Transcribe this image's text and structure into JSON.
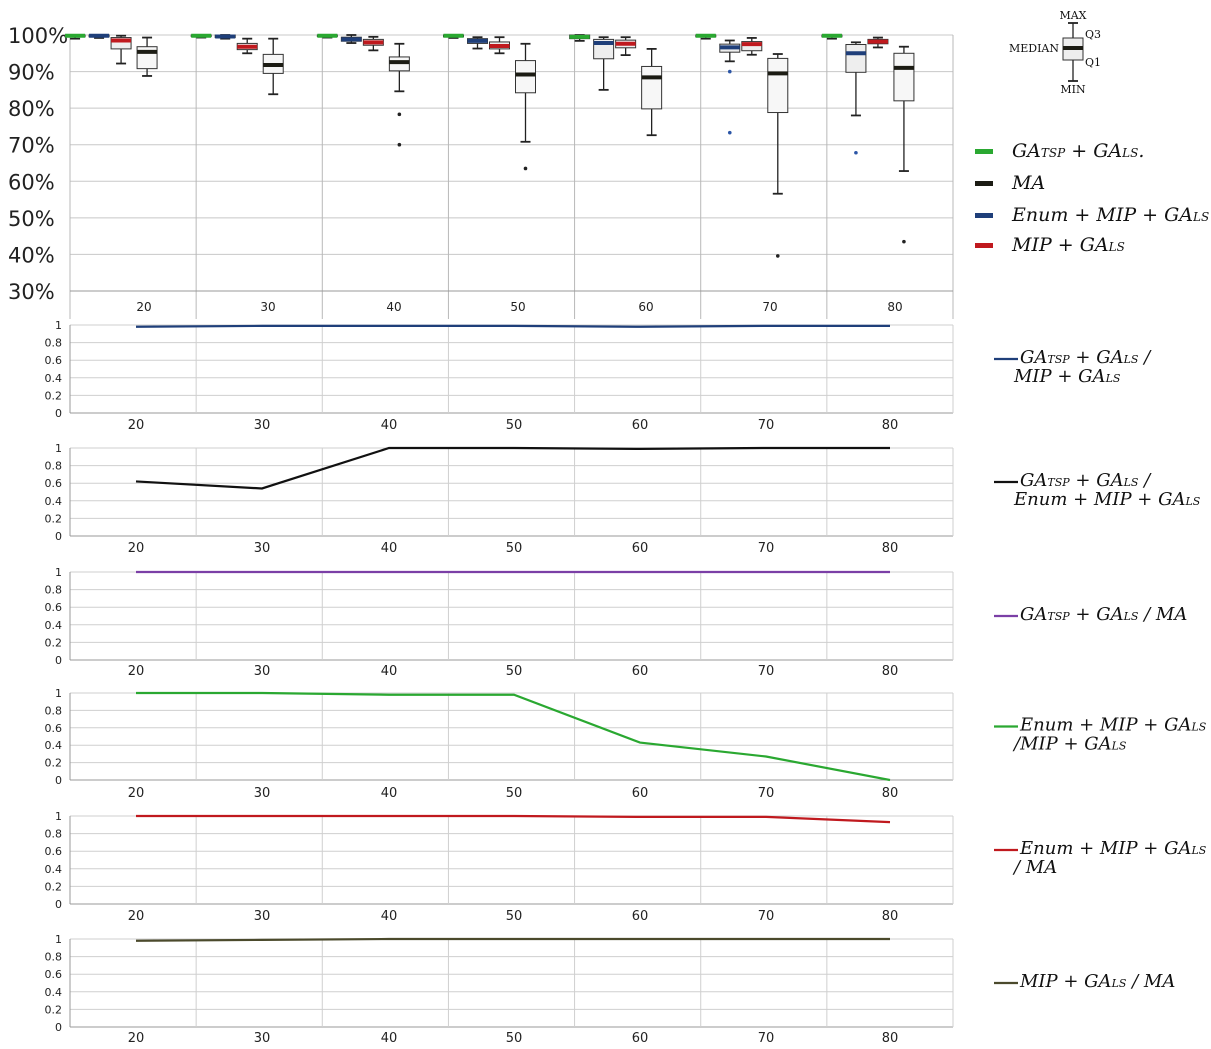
{
  "chart_data": [
    {
      "type": "box",
      "categories": [
        "20",
        "30",
        "40",
        "50",
        "60",
        "70",
        "80"
      ],
      "y_ticks": [
        "100%",
        "90%",
        "80%",
        "70%",
        "60%",
        "50%",
        "40%",
        "30%"
      ],
      "ylim": [
        30,
        100
      ],
      "grid": true,
      "legend_position": "right",
      "series": [
        {
          "label_main": "GA",
          "label_sub": "TSP",
          "label_mid": " + GA",
          "label_sub2": "LS",
          "label_tail": ".",
          "color": "#2aa831",
          "boxes": [
            {
              "min": 99.0,
              "q1": 99.5,
              "median": 99.8,
              "q3": 100,
              "max": 100
            },
            {
              "min": 99.3,
              "q1": 99.6,
              "median": 99.8,
              "q3": 100,
              "max": 100
            },
            {
              "min": 99.3,
              "q1": 99.6,
              "median": 99.8,
              "q3": 100,
              "max": 100
            },
            {
              "min": 99.2,
              "q1": 99.5,
              "median": 99.8,
              "q3": 100,
              "max": 100
            },
            {
              "min": 98.4,
              "q1": 99.0,
              "median": 99.5,
              "q3": 100,
              "max": 100
            },
            {
              "min": 99.0,
              "q1": 99.5,
              "median": 99.8,
              "q3": 100,
              "max": 100
            },
            {
              "min": 99.0,
              "q1": 99.5,
              "median": 99.8,
              "q3": 100,
              "max": 100
            }
          ],
          "outliers": [
            [],
            [],
            [],
            [],
            [],
            [],
            []
          ]
        },
        {
          "label_main": "Enum + MIP + GA",
          "label_sub": "LS",
          "label_mid": "",
          "label_sub2": "",
          "label_tail": "",
          "color": "#1f3f7a",
          "boxes": [
            {
              "min": 99.2,
              "q1": 99.5,
              "median": 99.8,
              "q3": 100,
              "max": 100
            },
            {
              "min": 99.0,
              "q1": 99.3,
              "median": 99.6,
              "q3": 100,
              "max": 100
            },
            {
              "min": 97.8,
              "q1": 98.3,
              "median": 98.8,
              "q3": 99.4,
              "max": 100
            },
            {
              "min": 96.3,
              "q1": 97.7,
              "median": 98.4,
              "q3": 99.0,
              "max": 99.4
            },
            {
              "min": 85.0,
              "q1": 93.5,
              "median": 97.8,
              "q3": 98.8,
              "max": 99.4
            },
            {
              "min": 92.8,
              "q1": 95.3,
              "median": 96.6,
              "q3": 97.5,
              "max": 98.5
            },
            {
              "min": 78.0,
              "q1": 89.8,
              "median": 95.0,
              "q3": 97.4,
              "max": 98.0
            }
          ],
          "outliers": [
            [],
            [],
            [],
            [],
            [],
            [
              90.0,
              73.3
            ],
            [
              67.8
            ]
          ]
        },
        {
          "label_main": "MIP + GA",
          "label_sub": "LS",
          "label_mid": "",
          "label_sub2": "",
          "label_tail": "",
          "color": "#c0191e",
          "boxes": [
            {
              "min": 92.2,
              "q1": 96.2,
              "median": 98.5,
              "q3": 99.3,
              "max": 99.8
            },
            {
              "min": 95.0,
              "q1": 96.0,
              "median": 96.8,
              "q3": 97.7,
              "max": 99.0
            },
            {
              "min": 95.8,
              "q1": 97.2,
              "median": 98.0,
              "q3": 98.8,
              "max": 99.5
            },
            {
              "min": 95.0,
              "q1": 96.2,
              "median": 97.0,
              "q3": 98.1,
              "max": 99.4
            },
            {
              "min": 94.5,
              "q1": 96.5,
              "median": 97.6,
              "q3": 98.6,
              "max": 99.4
            },
            {
              "min": 94.6,
              "q1": 95.7,
              "median": 97.5,
              "q3": 98.2,
              "max": 99.2
            },
            {
              "min": 96.6,
              "q1": 97.6,
              "median": 98.2,
              "q3": 98.8,
              "max": 99.3
            }
          ],
          "outliers": [
            [],
            [],
            [],
            [],
            [],
            [],
            []
          ]
        },
        {
          "label_main": "MA",
          "label_sub": "",
          "label_mid": "",
          "label_sub2": "",
          "label_tail": "",
          "color": "#1c1c14",
          "boxes": [
            {
              "min": 88.8,
              "q1": 90.8,
              "median": 95.4,
              "q3": 96.8,
              "max": 99.3
            },
            {
              "min": 83.8,
              "q1": 89.5,
              "median": 91.8,
              "q3": 94.7,
              "max": 99.0
            },
            {
              "min": 84.6,
              "q1": 90.2,
              "median": 92.6,
              "q3": 94.0,
              "max": 97.6
            },
            {
              "min": 70.8,
              "q1": 84.2,
              "median": 89.2,
              "q3": 93.0,
              "max": 97.6
            },
            {
              "min": 72.6,
              "q1": 79.8,
              "median": 88.4,
              "q3": 91.4,
              "max": 96.2
            },
            {
              "min": 56.6,
              "q1": 78.8,
              "median": 89.5,
              "q3": 93.6,
              "max": 94.8
            },
            {
              "min": 62.8,
              "q1": 82.0,
              "median": 91.0,
              "q3": 95.0,
              "max": 96.8
            }
          ],
          "outliers": [
            [],
            [],
            [
              78.3,
              70.0
            ],
            [
              63.5
            ],
            [],
            [
              39.6
            ],
            [
              43.5
            ]
          ]
        }
      ],
      "legend_order": [
        0,
        3,
        1,
        2
      ],
      "box_key": {
        "max": "MAX",
        "q3": "Q3",
        "median": "MEDIAN",
        "q1": "Q1",
        "min": "MIN"
      }
    },
    {
      "type": "line",
      "x": [
        "20",
        "30",
        "40",
        "50",
        "60",
        "70",
        "80"
      ],
      "y_ticks": [
        "1",
        "0.8",
        "0.6",
        "0.4",
        "0.2",
        "0"
      ],
      "ylim": [
        0,
        1
      ],
      "grid": true,
      "color": "#1f3f7a",
      "values": [
        0.98,
        0.99,
        0.99,
        0.99,
        0.98,
        0.99,
        0.99
      ],
      "legend_lines": [
        [
          {
            "t": "GA"
          },
          {
            "t": "TSP",
            "sub": true
          },
          {
            "t": " + GA"
          },
          {
            "t": "LS",
            "sub": true
          },
          {
            "t": " /"
          }
        ],
        [
          {
            "t": "MIP + GA"
          },
          {
            "t": "LS",
            "sub": true
          }
        ]
      ]
    },
    {
      "type": "line",
      "x": [
        "20",
        "30",
        "40",
        "50",
        "60",
        "70",
        "80"
      ],
      "y_ticks": [
        "1",
        "0.8",
        "0.6",
        "0.4",
        "0.2",
        "0"
      ],
      "ylim": [
        0,
        1
      ],
      "grid": true,
      "color": "#111111",
      "values": [
        0.62,
        0.54,
        1.0,
        1.0,
        0.99,
        1.0,
        1.0
      ],
      "legend_lines": [
        [
          {
            "t": "GA"
          },
          {
            "t": "TSP",
            "sub": true
          },
          {
            "t": " + GA"
          },
          {
            "t": "LS",
            "sub": true
          },
          {
            "t": " /"
          }
        ],
        [
          {
            "t": "Enum + MIP + GA"
          },
          {
            "t": "LS",
            "sub": true
          }
        ]
      ]
    },
    {
      "type": "line",
      "x": [
        "20",
        "30",
        "40",
        "50",
        "60",
        "70",
        "80"
      ],
      "y_ticks": [
        "1",
        "0.8",
        "0.6",
        "0.4",
        "0.2",
        "0"
      ],
      "ylim": [
        0,
        1
      ],
      "grid": true,
      "color": "#7b3fa6",
      "values": [
        1.0,
        1.0,
        1.0,
        1.0,
        1.0,
        1.0,
        1.0
      ],
      "legend_lines": [
        [
          {
            "t": "GA"
          },
          {
            "t": "TSP",
            "sub": true
          },
          {
            "t": " + GA"
          },
          {
            "t": "LS",
            "sub": true
          },
          {
            "t": " / MA"
          }
        ]
      ]
    },
    {
      "type": "line",
      "x": [
        "20",
        "30",
        "40",
        "50",
        "60",
        "70",
        "80"
      ],
      "y_ticks": [
        "1",
        "0.8",
        "0.6",
        "0.4",
        "0.2",
        "0"
      ],
      "ylim": [
        0,
        1
      ],
      "grid": true,
      "color": "#2aa831",
      "values": [
        1.0,
        1.0,
        0.98,
        0.98,
        0.43,
        0.27,
        0.0
      ],
      "legend_lines": [
        [
          {
            "t": "Enum + MIP + GA"
          },
          {
            "t": "LS",
            "sub": true
          }
        ],
        [
          {
            "t": "/MIP + GA"
          },
          {
            "t": "LS",
            "sub": true
          }
        ]
      ]
    },
    {
      "type": "line",
      "x": [
        "20",
        "30",
        "40",
        "50",
        "60",
        "70",
        "80"
      ],
      "y_ticks": [
        "1",
        "0.8",
        "0.6",
        "0.4",
        "0.2",
        "0"
      ],
      "ylim": [
        0,
        1
      ],
      "grid": true,
      "color": "#c0191e",
      "values": [
        1.0,
        1.0,
        1.0,
        1.0,
        0.99,
        0.99,
        0.93
      ],
      "legend_lines": [
        [
          {
            "t": "Enum + MIP + GA"
          },
          {
            "t": "LS",
            "sub": true
          }
        ],
        [
          {
            "t": " / MA"
          }
        ]
      ]
    },
    {
      "type": "line",
      "x": [
        "20",
        "30",
        "40",
        "50",
        "60",
        "70",
        "80"
      ],
      "y_ticks": [
        "1",
        "0.8",
        "0.6",
        "0.4",
        "0.2",
        "0"
      ],
      "ylim": [
        0,
        1
      ],
      "grid": true,
      "color": "#4b4a2c",
      "values": [
        0.98,
        0.99,
        1.0,
        1.0,
        1.0,
        1.0,
        1.0
      ],
      "legend_lines": [
        [
          {
            "t": "MIP + GA"
          },
          {
            "t": "LS",
            "sub": true
          },
          {
            "t": " / MA"
          }
        ]
      ]
    }
  ]
}
